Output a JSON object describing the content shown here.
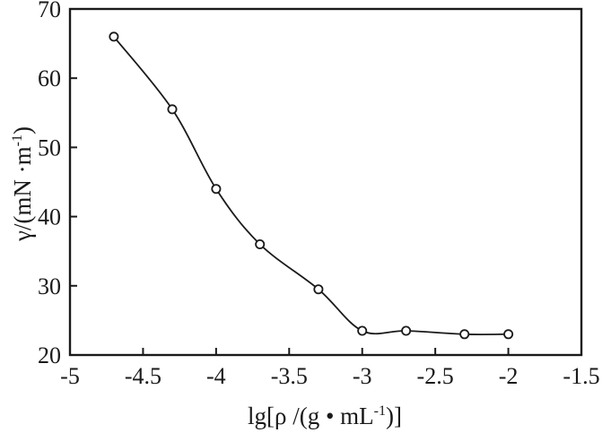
{
  "chart_data": {
    "type": "line",
    "title": "",
    "background": "#ffffff",
    "ink_color": "#1a1a1a",
    "marker_fill": "#ffffff",
    "marker_shape": "open-circle",
    "grid": false,
    "legend": null,
    "xlabel": {
      "main": "lg[ρ /(g • mL",
      "sup": "-1",
      "close": ")]"
    },
    "ylabel": {
      "main": "γ/(mN ·m",
      "sup": "-1",
      "close": ")"
    },
    "xlim": [
      -5,
      -1.5
    ],
    "ylim": [
      20,
      70
    ],
    "xticks": {
      "label_values": [
        -5,
        -4.5,
        -4,
        -3.5,
        -3,
        -2.5,
        -2,
        -1.5
      ],
      "labels": [
        "-5",
        "-4.5",
        "-4",
        "-3.5",
        "-3",
        "-2.5",
        "-2",
        "-1.5"
      ],
      "mark_values": [
        -4.5,
        -4,
        -3.5,
        -3,
        -2.5,
        -2
      ]
    },
    "yticks": {
      "label_values": [
        20,
        30,
        40,
        50,
        60,
        70
      ],
      "labels": [
        "20",
        "30",
        "40",
        "50",
        "60",
        "70"
      ],
      "mark_values": [
        30,
        40,
        50,
        60
      ]
    },
    "series": [
      {
        "x": [
          -4.7,
          -4.3,
          -4.0,
          -3.7,
          -3.3,
          -3.0,
          -2.7,
          -2.3,
          -2.0
        ],
        "y": [
          66.0,
          55.5,
          44.0,
          36.0,
          29.5,
          23.5,
          23.5,
          23.0,
          23.0
        ]
      }
    ]
  }
}
